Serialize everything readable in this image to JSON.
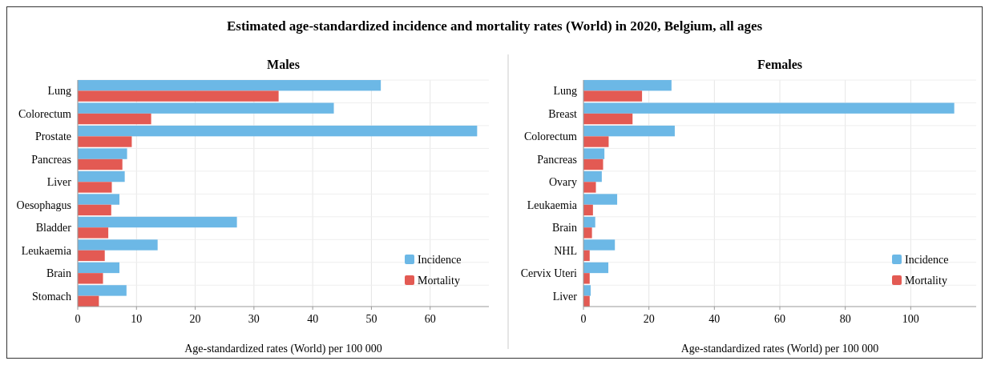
{
  "chart_data": [
    {
      "type": "bar",
      "orientation": "horizontal",
      "title": "Males",
      "annotations": [
        "Estimated age-standardized incidence and mortality rates (World) in 2020, Belgium, all ages"
      ],
      "xlabel": "Age-standardized rates (World) per 100 000",
      "categories": [
        "Lung",
        "Colorectum",
        "Prostate",
        "Pancreas",
        "Liver",
        "Oesophagus",
        "Bladder",
        "Leukaemia",
        "Brain",
        "Stomach"
      ],
      "series": [
        {
          "name": "Incidence",
          "color": "#6cb8e6",
          "values": [
            51.6,
            43.6,
            68.0,
            8.4,
            8.0,
            7.1,
            27.1,
            13.6,
            7.1,
            8.3
          ]
        },
        {
          "name": "Mortality",
          "color": "#e35a53",
          "values": [
            34.2,
            12.5,
            9.2,
            7.6,
            5.8,
            5.7,
            5.2,
            4.6,
            4.3,
            3.6
          ]
        }
      ],
      "xlim": [
        0,
        70
      ],
      "xticks": [
        0,
        10,
        20,
        30,
        40,
        50,
        60
      ],
      "grid": true,
      "legend": "bottom right"
    },
    {
      "type": "bar",
      "orientation": "horizontal",
      "title": "Females",
      "xlabel": "Age-standardized rates (World) per 100 000",
      "categories": [
        "Lung",
        "Breast",
        "Colorectum",
        "Pancreas",
        "Ovary",
        "Leukaemia",
        "Brain",
        "NHL",
        "Cervix Uteri",
        "Liver"
      ],
      "series": [
        {
          "name": "Incidence",
          "color": "#6cb8e6",
          "values": [
            26.9,
            113.3,
            27.9,
            6.4,
            5.6,
            10.3,
            3.6,
            9.6,
            7.6,
            2.2
          ]
        },
        {
          "name": "Mortality",
          "color": "#e35a53",
          "values": [
            17.9,
            15.0,
            7.7,
            6.0,
            3.8,
            2.9,
            2.6,
            1.9,
            1.9,
            1.9
          ]
        }
      ],
      "xlim": [
        0,
        120
      ],
      "xticks": [
        0,
        20,
        40,
        60,
        80,
        100
      ],
      "grid": true,
      "legend": "bottom right"
    }
  ]
}
